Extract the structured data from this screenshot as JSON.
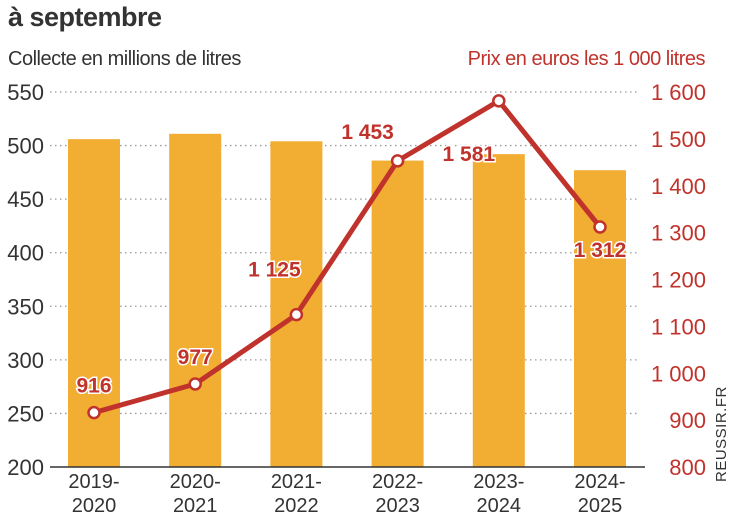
{
  "chart_data": {
    "type": "bar+line",
    "title": "à septembre",
    "categories": [
      "2019-2020",
      "2020-2021",
      "2021-2022",
      "2022-2023",
      "2023-2024",
      "2024-2025"
    ],
    "category_labels": [
      [
        "2019-",
        "2020"
      ],
      [
        "2020-",
        "2021"
      ],
      [
        "2021-",
        "2022"
      ],
      [
        "2022-",
        "2023"
      ],
      [
        "2023-",
        "2024"
      ],
      [
        "2024-",
        "2025"
      ]
    ],
    "series": [
      {
        "name": "Collecte en millions de litres",
        "type": "bar",
        "axis": "left",
        "values": [
          506,
          511,
          504,
          486,
          492,
          477
        ],
        "color": "#f2ad33"
      },
      {
        "name": "Prix en euros les 1 000 litres",
        "type": "line",
        "axis": "right",
        "values": [
          916,
          977,
          1125,
          1453,
          1581,
          1312
        ],
        "labels": [
          "916",
          "977",
          "1 125",
          "1 453",
          "1 581",
          "1 312"
        ],
        "color": "#c0332c"
      }
    ],
    "left_axis": {
      "label": "Collecte en millions de litres",
      "ylim": [
        200,
        550
      ],
      "ticks": [
        "200",
        "250",
        "300",
        "350",
        "400",
        "450",
        "500",
        "550"
      ]
    },
    "right_axis": {
      "label": "Prix en euros les 1 000 litres",
      "ylim": [
        800,
        1600
      ],
      "ticks": [
        "800",
        "900",
        "1 000",
        "1 100",
        "1 200",
        "1 300",
        "1 400",
        "1 500",
        "1 600"
      ]
    },
    "grid": "dotted horizontal",
    "source": "REUSSIR.FR"
  }
}
